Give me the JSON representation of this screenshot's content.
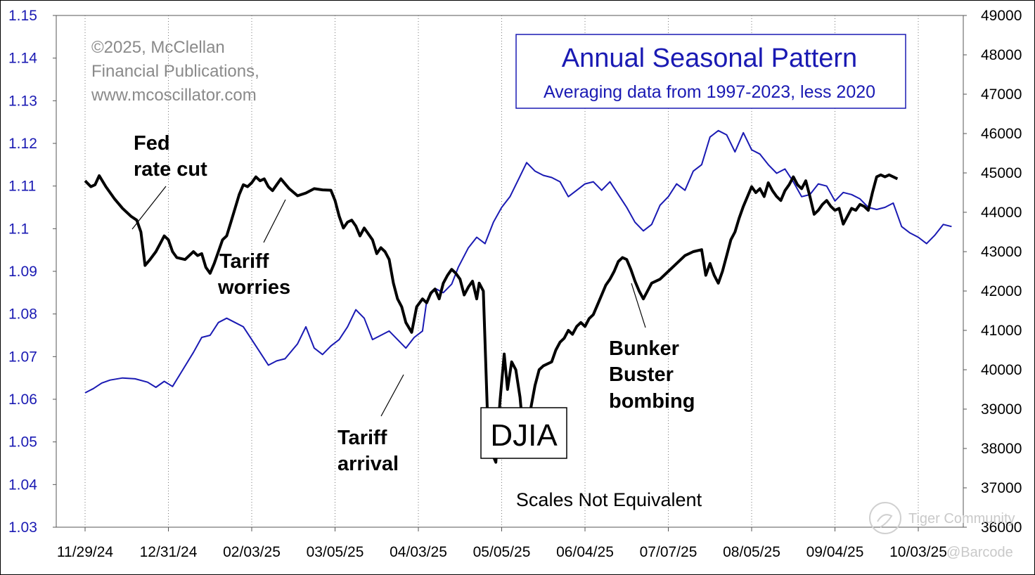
{
  "chart_data": {
    "type": "line",
    "title": "Annual Seasonal Pattern",
    "subtitle": "Averaging data from 1997-2023, less 2020",
    "credit": [
      "©2025, McClellan",
      "Financial Publications,",
      "www.mcoscillator.com"
    ],
    "series_label": "DJIA",
    "note": "Scales Not Equivalent",
    "x_ticks": [
      "11/29/24",
      "12/31/24",
      "02/03/25",
      "03/05/25",
      "04/03/25",
      "05/05/25",
      "06/04/25",
      "07/07/25",
      "08/05/25",
      "09/04/25",
      "10/03/25"
    ],
    "left_axis": {
      "range": [
        1.03,
        1.15
      ],
      "ticks": [
        "1.15",
        "1.14",
        "1.13",
        "1.12",
        "1.11",
        "1.1",
        "1.09",
        "1.08",
        "1.07",
        "1.06",
        "1.05",
        "1.04",
        "1.03"
      ],
      "color": "#1a1ab3"
    },
    "right_axis": {
      "range": [
        36000,
        49000
      ],
      "ticks": [
        "49000",
        "48000",
        "47000",
        "46000",
        "45000",
        "44000",
        "43000",
        "42000",
        "41000",
        "40000",
        "39000",
        "38000",
        "37000",
        "36000"
      ],
      "color": "#000000"
    },
    "annotations": [
      {
        "id": "fed",
        "lines": [
          "Fed",
          "rate cut"
        ]
      },
      {
        "id": "tariff-worries",
        "lines": [
          "Tariff",
          "worries"
        ]
      },
      {
        "id": "tariff-arrival",
        "lines": [
          "Tariff",
          "arrival"
        ]
      },
      {
        "id": "bunker",
        "lines": [
          "Bunker",
          "Buster",
          "bombing"
        ]
      }
    ],
    "watermark": [
      "Tiger Community",
      "@Barcode"
    ],
    "series": [
      {
        "name": "Seasonal pattern",
        "axis": "left",
        "color": "#1a1ab3",
        "points": [
          [
            0,
            1.0615
          ],
          [
            0.1,
            1.0625
          ],
          [
            0.2,
            1.0638
          ],
          [
            0.3,
            1.0645
          ],
          [
            0.45,
            1.065
          ],
          [
            0.6,
            1.0648
          ],
          [
            0.75,
            1.064
          ],
          [
            0.85,
            1.0628
          ],
          [
            0.95,
            1.0642
          ],
          [
            1.05,
            1.063
          ],
          [
            1.15,
            1.0662
          ],
          [
            1.3,
            1.071
          ],
          [
            1.4,
            1.0745
          ],
          [
            1.5,
            1.075
          ],
          [
            1.6,
            1.078
          ],
          [
            1.7,
            1.079
          ],
          [
            1.8,
            1.078
          ],
          [
            1.9,
            1.077
          ],
          [
            2.0,
            1.074
          ],
          [
            2.1,
            1.071
          ],
          [
            2.2,
            1.068
          ],
          [
            2.3,
            1.069
          ],
          [
            2.4,
            1.0695
          ],
          [
            2.55,
            1.073
          ],
          [
            2.65,
            1.077
          ],
          [
            2.75,
            1.072
          ],
          [
            2.85,
            1.0705
          ],
          [
            2.95,
            1.0725
          ],
          [
            3.05,
            1.074
          ],
          [
            3.15,
            1.077
          ],
          [
            3.25,
            1.081
          ],
          [
            3.35,
            1.079
          ],
          [
            3.45,
            1.074
          ],
          [
            3.55,
            1.075
          ],
          [
            3.65,
            1.076
          ],
          [
            3.75,
            1.074
          ],
          [
            3.85,
            1.072
          ],
          [
            3.95,
            1.0745
          ],
          [
            4.05,
            1.076
          ],
          [
            4.1,
            1.083
          ],
          [
            4.2,
            1.086
          ],
          [
            4.3,
            1.085
          ],
          [
            4.4,
            1.087
          ],
          [
            4.48,
            1.091
          ],
          [
            4.6,
            1.0955
          ],
          [
            4.7,
            1.098
          ],
          [
            4.8,
            1.0965
          ],
          [
            4.9,
            1.1015
          ],
          [
            5.0,
            1.105
          ],
          [
            5.1,
            1.1075
          ],
          [
            5.2,
            1.1115
          ],
          [
            5.3,
            1.1155
          ],
          [
            5.4,
            1.1135
          ],
          [
            5.5,
            1.1125
          ],
          [
            5.6,
            1.112
          ],
          [
            5.7,
            1.111
          ],
          [
            5.8,
            1.1075
          ],
          [
            5.9,
            1.109
          ],
          [
            6.0,
            1.1105
          ],
          [
            6.1,
            1.111
          ],
          [
            6.2,
            1.109
          ],
          [
            6.3,
            1.111
          ],
          [
            6.4,
            1.108
          ],
          [
            6.5,
            1.105
          ],
          [
            6.6,
            1.1015
          ],
          [
            6.7,
            1.0995
          ],
          [
            6.8,
            1.101
          ],
          [
            6.9,
            1.1055
          ],
          [
            7.0,
            1.1075
          ],
          [
            7.1,
            1.1105
          ],
          [
            7.2,
            1.109
          ],
          [
            7.3,
            1.1135
          ],
          [
            7.4,
            1.115
          ],
          [
            7.5,
            1.1215
          ],
          [
            7.6,
            1.123
          ],
          [
            7.7,
            1.122
          ],
          [
            7.8,
            1.118
          ],
          [
            7.9,
            1.1225
          ],
          [
            8.0,
            1.1185
          ],
          [
            8.1,
            1.1175
          ],
          [
            8.2,
            1.115
          ],
          [
            8.3,
            1.113
          ],
          [
            8.4,
            1.114
          ],
          [
            8.5,
            1.111
          ],
          [
            8.6,
            1.1075
          ],
          [
            8.7,
            1.108
          ],
          [
            8.8,
            1.1105
          ],
          [
            8.9,
            1.11
          ],
          [
            9.0,
            1.1065
          ],
          [
            9.1,
            1.1085
          ],
          [
            9.2,
            1.108
          ],
          [
            9.3,
            1.107
          ],
          [
            9.4,
            1.105
          ],
          [
            9.5,
            1.1045
          ],
          [
            9.6,
            1.105
          ],
          [
            9.7,
            1.106
          ],
          [
            9.8,
            1.1005
          ],
          [
            9.9,
            1.099
          ],
          [
            10.0,
            1.098
          ],
          [
            10.1,
            1.0965
          ],
          [
            10.2,
            1.0985
          ],
          [
            10.3,
            1.101
          ],
          [
            10.4,
            1.1005
          ]
        ]
      },
      {
        "name": "DJIA",
        "axis": "right",
        "color": "#000000",
        "points": [
          [
            0,
            44800
          ],
          [
            0.07,
            44650
          ],
          [
            0.12,
            44700
          ],
          [
            0.17,
            44930
          ],
          [
            0.25,
            44650
          ],
          [
            0.35,
            44350
          ],
          [
            0.45,
            44100
          ],
          [
            0.55,
            43900
          ],
          [
            0.62,
            43800
          ],
          [
            0.67,
            43500
          ],
          [
            0.72,
            42650
          ],
          [
            0.78,
            42800
          ],
          [
            0.85,
            43000
          ],
          [
            0.9,
            43200
          ],
          [
            0.95,
            43400
          ],
          [
            1.0,
            43300
          ],
          [
            1.05,
            43000
          ],
          [
            1.1,
            42850
          ],
          [
            1.2,
            42800
          ],
          [
            1.3,
            43000
          ],
          [
            1.35,
            42900
          ],
          [
            1.4,
            42950
          ],
          [
            1.45,
            42600
          ],
          [
            1.5,
            42450
          ],
          [
            1.55,
            42700
          ],
          [
            1.6,
            43000
          ],
          [
            1.65,
            43300
          ],
          [
            1.7,
            43400
          ],
          [
            1.75,
            43750
          ],
          [
            1.8,
            44100
          ],
          [
            1.85,
            44450
          ],
          [
            1.9,
            44700
          ],
          [
            1.95,
            44650
          ],
          [
            2.0,
            44750
          ],
          [
            2.05,
            44900
          ],
          [
            2.1,
            44800
          ],
          [
            2.15,
            44850
          ],
          [
            2.2,
            44650
          ],
          [
            2.25,
            44550
          ],
          [
            2.3,
            44700
          ],
          [
            2.35,
            44850
          ],
          [
            2.45,
            44600
          ],
          [
            2.55,
            44420
          ],
          [
            2.65,
            44490
          ],
          [
            2.75,
            44600
          ],
          [
            2.85,
            44570
          ],
          [
            2.95,
            44560
          ],
          [
            3.0,
            44300
          ],
          [
            3.05,
            43900
          ],
          [
            3.1,
            43600
          ],
          [
            3.15,
            43750
          ],
          [
            3.2,
            43800
          ],
          [
            3.25,
            43650
          ],
          [
            3.3,
            43400
          ],
          [
            3.35,
            43600
          ],
          [
            3.45,
            43300
          ],
          [
            3.5,
            42950
          ],
          [
            3.55,
            43100
          ],
          [
            3.6,
            43000
          ],
          [
            3.65,
            42800
          ],
          [
            3.7,
            42200
          ],
          [
            3.75,
            41800
          ],
          [
            3.8,
            41600
          ],
          [
            3.85,
            41200
          ],
          [
            3.92,
            40950
          ],
          [
            3.98,
            41600
          ],
          [
            4.05,
            41800
          ],
          [
            4.1,
            41700
          ],
          [
            4.15,
            41950
          ],
          [
            4.2,
            42050
          ],
          [
            4.25,
            41800
          ],
          [
            4.3,
            42200
          ],
          [
            4.35,
            42400
          ],
          [
            4.4,
            42550
          ],
          [
            4.45,
            42450
          ],
          [
            4.5,
            42300
          ],
          [
            4.55,
            41900
          ],
          [
            4.6,
            42100
          ],
          [
            4.65,
            42250
          ],
          [
            4.7,
            41800
          ],
          [
            4.73,
            42200
          ],
          [
            4.78,
            42000
          ],
          [
            4.83,
            38800
          ],
          [
            4.88,
            37900
          ],
          [
            4.93,
            37650
          ],
          [
            4.98,
            39200
          ],
          [
            5.03,
            40400
          ],
          [
            5.07,
            39500
          ],
          [
            5.12,
            40200
          ],
          [
            5.17,
            40000
          ],
          [
            5.22,
            39300
          ],
          [
            5.28,
            37900
          ],
          [
            5.33,
            38800
          ],
          [
            5.4,
            39600
          ],
          [
            5.45,
            40000
          ],
          [
            5.5,
            40100
          ],
          [
            5.6,
            40200
          ],
          [
            5.65,
            40500
          ],
          [
            5.7,
            40700
          ],
          [
            5.75,
            40800
          ],
          [
            5.8,
            41000
          ],
          [
            5.85,
            40900
          ],
          [
            5.9,
            41100
          ],
          [
            5.95,
            41200
          ],
          [
            6.0,
            41100
          ],
          [
            6.05,
            41300
          ],
          [
            6.1,
            41400
          ],
          [
            6.15,
            41650
          ],
          [
            6.2,
            41900
          ],
          [
            6.25,
            42150
          ],
          [
            6.3,
            42300
          ],
          [
            6.35,
            42500
          ],
          [
            6.4,
            42750
          ],
          [
            6.45,
            42850
          ],
          [
            6.5,
            42800
          ],
          [
            6.55,
            42550
          ],
          [
            6.6,
            42250
          ],
          [
            6.65,
            42000
          ],
          [
            6.7,
            41800
          ],
          [
            6.75,
            42000
          ],
          [
            6.8,
            42200
          ],
          [
            6.9,
            42300
          ],
          [
            7.0,
            42500
          ],
          [
            7.1,
            42700
          ],
          [
            7.2,
            42900
          ],
          [
            7.3,
            43000
          ],
          [
            7.4,
            43050
          ],
          [
            7.45,
            42400
          ],
          [
            7.5,
            42700
          ],
          [
            7.55,
            42400
          ],
          [
            7.6,
            42200
          ],
          [
            7.65,
            42500
          ],
          [
            7.7,
            42900
          ],
          [
            7.75,
            43300
          ],
          [
            7.8,
            43500
          ],
          [
            7.85,
            43850
          ],
          [
            7.9,
            44150
          ],
          [
            7.95,
            44400
          ],
          [
            8.0,
            44650
          ],
          [
            8.05,
            44500
          ],
          [
            8.1,
            44600
          ],
          [
            8.15,
            44400
          ],
          [
            8.2,
            44750
          ],
          [
            8.25,
            44550
          ],
          [
            8.3,
            44400
          ],
          [
            8.35,
            44300
          ],
          [
            8.4,
            44550
          ],
          [
            8.45,
            44700
          ],
          [
            8.5,
            44900
          ],
          [
            8.55,
            44700
          ],
          [
            8.6,
            44600
          ],
          [
            8.65,
            44800
          ],
          [
            8.7,
            44400
          ],
          [
            8.75,
            43950
          ],
          [
            8.8,
            44050
          ],
          [
            8.85,
            44200
          ],
          [
            8.9,
            44300
          ],
          [
            8.95,
            44150
          ],
          [
            9.0,
            44050
          ],
          [
            9.05,
            44100
          ],
          [
            9.1,
            43700
          ],
          [
            9.15,
            43900
          ],
          [
            9.2,
            44100
          ],
          [
            9.25,
            44050
          ],
          [
            9.3,
            44200
          ],
          [
            9.35,
            44150
          ],
          [
            9.4,
            44050
          ],
          [
            9.45,
            44500
          ],
          [
            9.5,
            44900
          ],
          [
            9.55,
            44950
          ],
          [
            9.6,
            44900
          ],
          [
            9.65,
            44950
          ],
          [
            9.7,
            44900
          ],
          [
            9.75,
            44850
          ]
        ]
      }
    ]
  }
}
